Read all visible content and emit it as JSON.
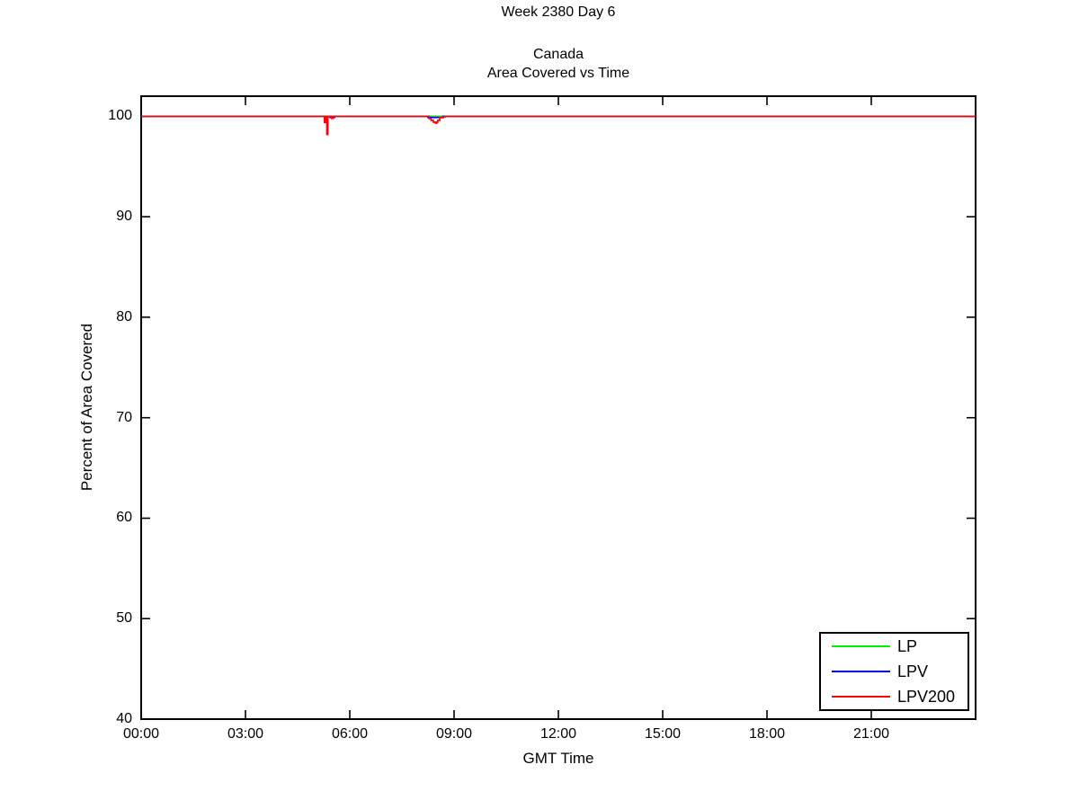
{
  "figure": {
    "suptitle": "Week 2380 Day 6",
    "title_line1": "Canada",
    "title_line2": "Area Covered vs Time",
    "xlabel": "GMT Time",
    "ylabel": "Percent of Area Covered"
  },
  "colors": {
    "axis": "#000000",
    "background": "#ffffff",
    "lp": "#00ee00",
    "lpv": "#0000ee",
    "lpv200": "#ff0000"
  },
  "chart_data": {
    "type": "line",
    "suptitle": "Week 2380 Day 6",
    "title": "Canada — Area Covered vs Time",
    "xlabel": "GMT Time",
    "ylabel": "Percent of Area Covered",
    "xlim": [
      0,
      24
    ],
    "ylim": [
      40,
      102
    ],
    "grid": false,
    "legend_position": "lower right",
    "xticks": [
      {
        "value": 0,
        "label": "00:00"
      },
      {
        "value": 3,
        "label": "03:00"
      },
      {
        "value": 6,
        "label": "06:00"
      },
      {
        "value": 9,
        "label": "09:00"
      },
      {
        "value": 12,
        "label": "12:00"
      },
      {
        "value": 15,
        "label": "15:00"
      },
      {
        "value": 18,
        "label": "18:00"
      },
      {
        "value": 21,
        "label": "21:00"
      }
    ],
    "yticks": [
      {
        "value": 40,
        "label": "40"
      },
      {
        "value": 50,
        "label": "50"
      },
      {
        "value": 60,
        "label": "60"
      },
      {
        "value": 70,
        "label": "70"
      },
      {
        "value": 80,
        "label": "80"
      },
      {
        "value": 90,
        "label": "90"
      },
      {
        "value": 100,
        "label": "100"
      }
    ],
    "x_unit": "hours GMT",
    "y_unit": "percent",
    "series": [
      {
        "name": "LP",
        "color": "#00ee00",
        "points": [
          [
            0,
            100
          ],
          [
            24,
            100
          ]
        ]
      },
      {
        "name": "LPV",
        "color": "#0000ee",
        "points": [
          [
            0,
            100
          ],
          [
            5.43,
            100
          ],
          [
            5.43,
            99.9
          ],
          [
            5.56,
            99.9
          ],
          [
            5.56,
            100
          ],
          [
            8.25,
            100
          ],
          [
            8.25,
            99.88
          ],
          [
            8.69,
            99.88
          ],
          [
            8.69,
            100
          ],
          [
            24,
            100
          ]
        ]
      },
      {
        "name": "LPV200",
        "color": "#ff0000",
        "points": [
          [
            0,
            100
          ],
          [
            5.27,
            100
          ],
          [
            5.27,
            99.4
          ],
          [
            5.31,
            99.4
          ],
          [
            5.31,
            100
          ],
          [
            5.34,
            100
          ],
          [
            5.34,
            98.2
          ],
          [
            5.37,
            98.2
          ],
          [
            5.37,
            100
          ],
          [
            5.47,
            100
          ],
          [
            5.47,
            99.8
          ],
          [
            5.53,
            99.8
          ],
          [
            5.53,
            100
          ],
          [
            8.28,
            100
          ],
          [
            8.28,
            99.77
          ],
          [
            8.34,
            99.77
          ],
          [
            8.34,
            99.59
          ],
          [
            8.4,
            99.59
          ],
          [
            8.4,
            99.41
          ],
          [
            8.47,
            99.41
          ],
          [
            8.47,
            99.32
          ],
          [
            8.5,
            99.32
          ],
          [
            8.5,
            99.41
          ],
          [
            8.53,
            99.41
          ],
          [
            8.53,
            99.59
          ],
          [
            8.59,
            99.59
          ],
          [
            8.59,
            99.86
          ],
          [
            8.66,
            99.86
          ],
          [
            8.66,
            99.95
          ],
          [
            8.74,
            99.95
          ],
          [
            8.74,
            100
          ],
          [
            24,
            100
          ]
        ]
      }
    ]
  }
}
